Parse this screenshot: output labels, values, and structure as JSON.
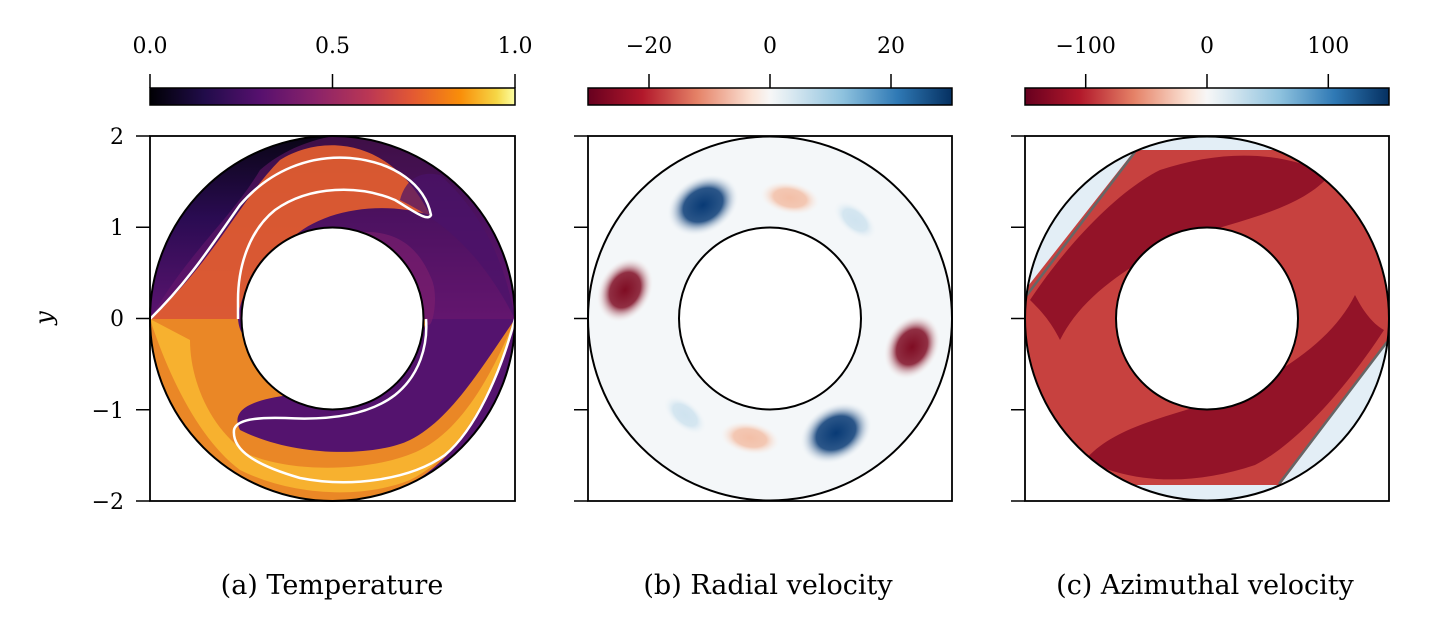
{
  "chart_data": [
    {
      "type": "heatmap",
      "caption": "(a) Temperature",
      "field": "temperature",
      "colormap": "inferno",
      "colorbar": {
        "range": [
          0.0,
          1.0
        ],
        "ticks": [
          0.0,
          0.5,
          1.0
        ],
        "tick_labels": [
          "0.0",
          "0.5",
          "1.0"
        ]
      },
      "ylabel": "y",
      "ylim": [
        -2,
        2
      ],
      "yticks": [
        2,
        1,
        0,
        -1,
        -2
      ],
      "ytick_labels": [
        "2",
        "1",
        "0",
        "−1",
        "−2"
      ],
      "annulus": {
        "inner_radius": 1,
        "outer_radius": 2
      },
      "contour_level": 0.5,
      "contour_color": "#ffffff"
    },
    {
      "type": "heatmap",
      "caption": "(b) Radial velocity",
      "field": "radial_velocity",
      "colormap": "RdBu",
      "colorbar": {
        "range": [
          -30,
          30
        ],
        "ticks": [
          -20,
          0,
          20
        ],
        "tick_labels": [
          "−20",
          "0",
          "20"
        ]
      },
      "ylim": [
        -2,
        2
      ],
      "annulus": {
        "inner_radius": 1,
        "outer_radius": 2
      }
    },
    {
      "type": "heatmap",
      "caption": "(c) Azimuthal velocity",
      "field": "azimuthal_velocity",
      "colormap": "RdBu",
      "colorbar": {
        "range": [
          -150,
          150
        ],
        "ticks": [
          -100,
          0,
          100
        ],
        "tick_labels": [
          "−100",
          "0",
          "100"
        ]
      },
      "ylim": [
        -2,
        2
      ],
      "annulus": {
        "inner_radius": 1,
        "outer_radius": 2
      },
      "contour_level": 0,
      "contour_color": "#666666"
    }
  ]
}
